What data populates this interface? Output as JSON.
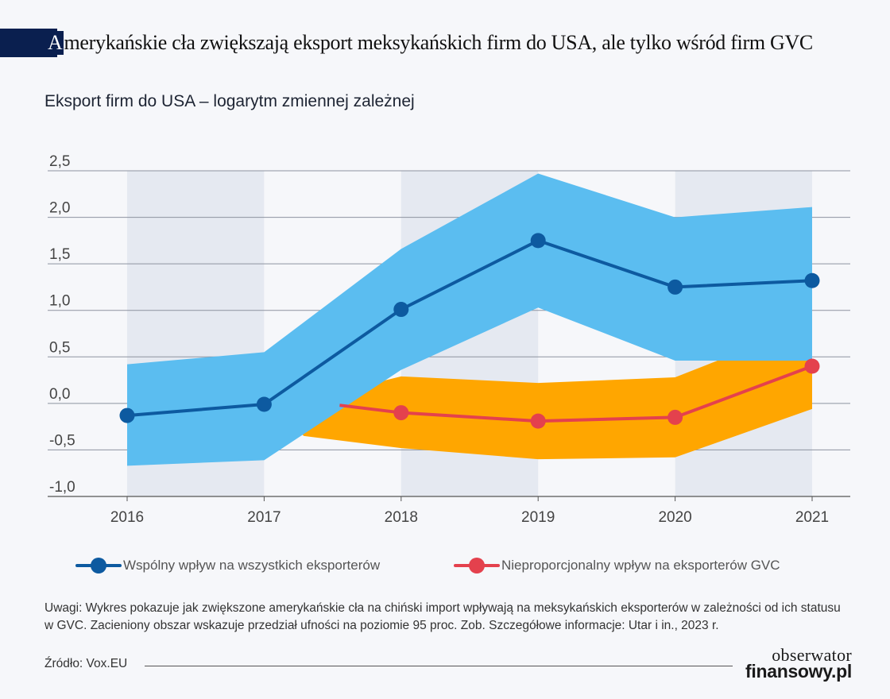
{
  "title": {
    "first_letter": "A",
    "rest": "merykańskie cła zwiększają eksport meksykańskich firm do USA, ale tylko wśród firm GVC"
  },
  "colors": {
    "title_accent": "#0a1f4f",
    "series_all": "#0d5aa0",
    "band_all": "#5bbdf0",
    "series_gvc": "#e4414d",
    "band_gvc": "#ffa600",
    "shade": "#e5e9f1"
  },
  "legend": {
    "all": "Wspólny wpływ na wszystkich eksporterów",
    "gvc": "Nieproporcjonalny wpływ na eksporterów GVC"
  },
  "note": "Uwagi: Wykres pokazuje jak zwiększone amerykańskie cła na chiński import wpływają na meksykańskich eksporterów w zależności od ich statusu w GVC. Zacieniony obszar wskazuje przedział ufności na poziomie 95 proc. Zob. Szczegółowe informacje: Utar i in., 2023 r.",
  "source": "Źródło: Vox.EU",
  "logo": {
    "line1": "obserwator",
    "line2": "finansowy.pl"
  },
  "chart_data": {
    "type": "line",
    "title": "Eksport firm do USA – logarytm zmiennej zależnej",
    "x": [
      "2016",
      "2017",
      "2018",
      "2019",
      "2020",
      "2021"
    ],
    "ylim": [
      -1.0,
      2.5
    ],
    "yticks": [
      -1.0,
      -0.5,
      0.0,
      0.5,
      1.0,
      1.5,
      2.0,
      2.5
    ],
    "ytick_labels": [
      "-1,0",
      "-0,5",
      "0,0",
      "0,5",
      "1,0",
      "1,5",
      "2,0",
      "2,5"
    ],
    "shaded_years": [
      "2016",
      "2018",
      "2020"
    ],
    "grid": "horizontal",
    "legend_position": "bottom",
    "series": [
      {
        "name": "Wspólny wpływ na wszystkich eksporterów",
        "values": [
          -0.13,
          -0.01,
          1.01,
          1.75,
          1.25,
          1.32
        ],
        "ci_upper": [
          0.42,
          0.55,
          1.66,
          2.47,
          2.0,
          2.11
        ],
        "ci_lower": [
          -0.67,
          -0.61,
          0.36,
          1.03,
          0.46,
          0.46
        ]
      },
      {
        "name": "Nieproporcjonalny wpływ na eksporterów GVC",
        "values": [
          null,
          null,
          -0.1,
          -0.19,
          -0.15,
          0.4
        ],
        "ci_upper": [
          null,
          null,
          0.29,
          0.22,
          0.28,
          0.86
        ],
        "ci_lower": [
          null,
          null,
          -0.48,
          -0.6,
          -0.58,
          -0.06
        ]
      }
    ]
  }
}
